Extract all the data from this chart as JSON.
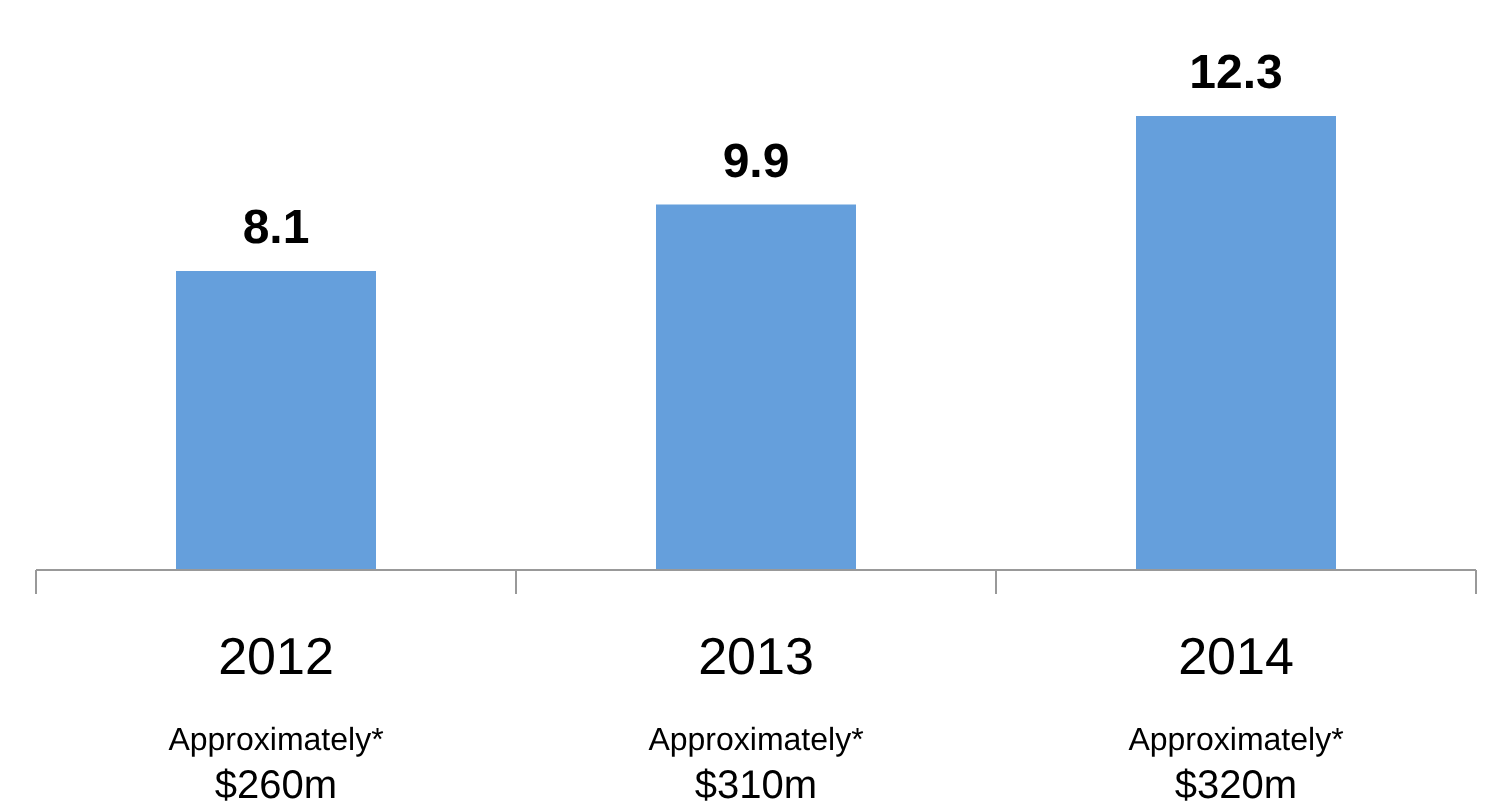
{
  "chart_data": {
    "type": "bar",
    "categories": [
      "2012",
      "2013",
      "2014"
    ],
    "values": [
      8.1,
      9.9,
      12.3
    ],
    "color": "#659fdc",
    "data_labels": true,
    "grid": false,
    "legend": false,
    "annotations": [
      "Approximately*",
      "$260m",
      "Approximately*",
      "$310m",
      "Approximately*",
      "$320m"
    ]
  }
}
